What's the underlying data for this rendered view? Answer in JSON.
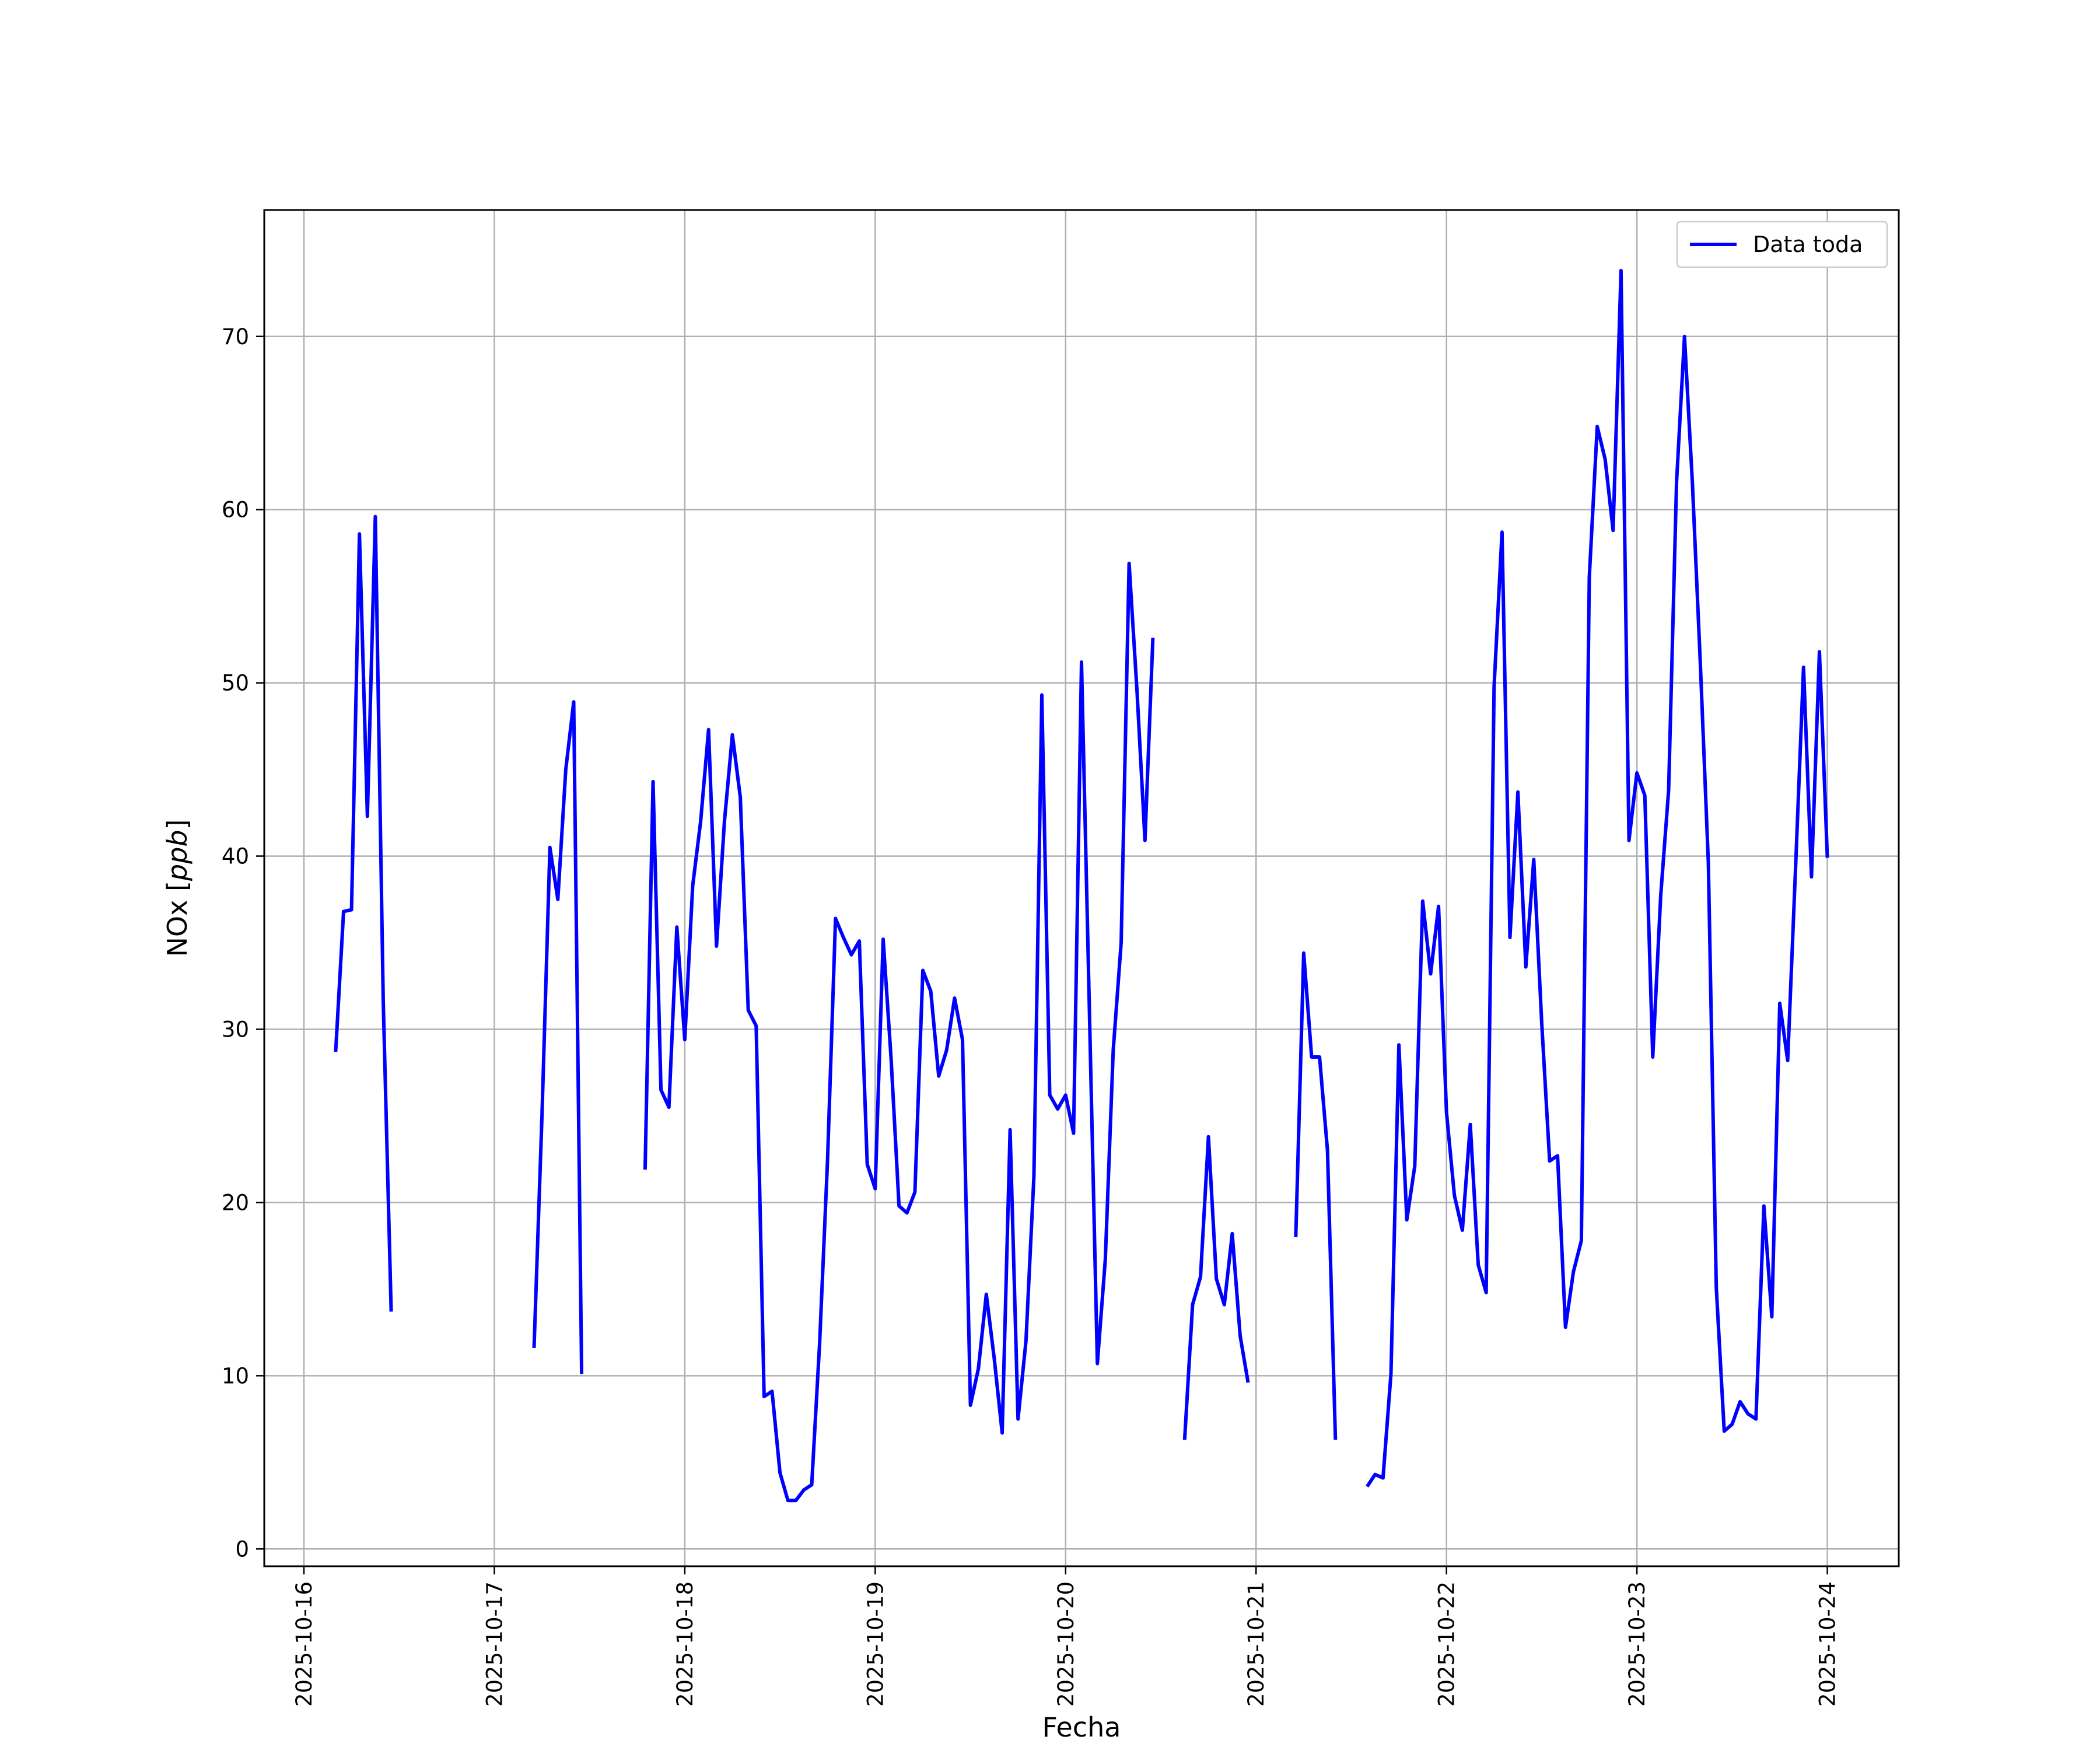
{
  "chart_data": {
    "type": "line",
    "title": "",
    "xlabel": "Fecha",
    "ylabel_prefix": "NOx [",
    "ylabel_unit": "ppb",
    "ylabel_suffix": "]",
    "x_ticks": [
      "2025-10-16",
      "2025-10-17",
      "2025-10-18",
      "2025-10-19",
      "2025-10-20",
      "2025-10-21",
      "2025-10-22",
      "2025-10-23",
      "2025-10-24"
    ],
    "y_ticks": [
      "0",
      "10",
      "20",
      "30",
      "40",
      "50",
      "60",
      "70"
    ],
    "xlim": [
      "2025-10-15T19:00",
      "2025-10-24T09:00"
    ],
    "ylim": [
      -1,
      77.3
    ],
    "grid": true,
    "legend": "top-right",
    "series": [
      {
        "name": "Data toda",
        "color": "#0000ff",
        "segments": [
          [
            [
              "2025-10-16T04:00",
              28.7
            ],
            [
              "2025-10-16T05:00",
              36.8
            ],
            [
              "2025-10-16T06:00",
              36.9
            ],
            [
              "2025-10-16T07:00",
              58.6
            ],
            [
              "2025-10-16T08:00",
              42.3
            ],
            [
              "2025-10-16T09:00",
              59.6
            ],
            [
              "2025-10-16T10:00",
              31.6
            ],
            [
              "2025-10-16T11:00",
              13.7
            ]
          ],
          [
            [
              "2025-10-17T05:00",
              11.6
            ],
            [
              "2025-10-17T06:00",
              25.0
            ],
            [
              "2025-10-17T07:00",
              40.5
            ],
            [
              "2025-10-17T08:00",
              37.5
            ],
            [
              "2025-10-17T09:00",
              45.0
            ],
            [
              "2025-10-17T10:00",
              48.9
            ],
            [
              "2025-10-17T11:00",
              10.1
            ]
          ],
          [
            [
              "2025-10-17T19:00",
              21.9
            ],
            [
              "2025-10-17T20:00",
              44.3
            ],
            [
              "2025-10-17T21:00",
              26.5
            ],
            [
              "2025-10-17T22:00",
              25.5
            ],
            [
              "2025-10-17T23:00",
              35.9
            ],
            [
              "2025-10-18T00:00",
              29.4
            ],
            [
              "2025-10-18T01:00",
              38.3
            ],
            [
              "2025-10-18T02:00",
              42.0
            ],
            [
              "2025-10-18T03:00",
              47.3
            ],
            [
              "2025-10-18T04:00",
              34.8
            ],
            [
              "2025-10-18T05:00",
              42.0
            ],
            [
              "2025-10-18T06:00",
              47.0
            ],
            [
              "2025-10-18T07:00",
              43.4
            ],
            [
              "2025-10-18T08:00",
              31.1
            ],
            [
              "2025-10-18T09:00",
              30.2
            ],
            [
              "2025-10-18T10:00",
              8.8
            ],
            [
              "2025-10-18T11:00",
              9.1
            ],
            [
              "2025-10-18T12:00",
              4.4
            ],
            [
              "2025-10-18T13:00",
              2.8
            ],
            [
              "2025-10-18T14:00",
              2.8
            ],
            [
              "2025-10-18T15:00",
              3.4
            ],
            [
              "2025-10-18T16:00",
              3.7
            ],
            [
              "2025-10-18T17:00",
              11.9
            ],
            [
              "2025-10-18T18:00",
              22.5
            ],
            [
              "2025-10-18T19:00",
              36.4
            ],
            [
              "2025-10-18T20:00",
              35.3
            ],
            [
              "2025-10-18T21:00",
              34.3
            ],
            [
              "2025-10-18T22:00",
              35.1
            ],
            [
              "2025-10-18T23:00",
              22.2
            ],
            [
              "2025-10-19T00:00",
              20.8
            ],
            [
              "2025-10-19T01:00",
              35.2
            ],
            [
              "2025-10-19T02:00",
              28.3
            ],
            [
              "2025-10-19T03:00",
              19.8
            ],
            [
              "2025-10-19T04:00",
              19.4
            ],
            [
              "2025-10-19T05:00",
              20.6
            ],
            [
              "2025-10-19T06:00",
              33.4
            ],
            [
              "2025-10-19T07:00",
              32.2
            ],
            [
              "2025-10-19T08:00",
              27.3
            ],
            [
              "2025-10-19T09:00",
              28.8
            ],
            [
              "2025-10-19T10:00",
              31.8
            ],
            [
              "2025-10-19T11:00",
              29.4
            ],
            [
              "2025-10-19T12:00",
              8.3
            ],
            [
              "2025-10-19T13:00",
              10.4
            ],
            [
              "2025-10-19T14:00",
              14.7
            ],
            [
              "2025-10-19T15:00",
              11.0
            ],
            [
              "2025-10-19T16:00",
              6.7
            ],
            [
              "2025-10-19T17:00",
              24.2
            ],
            [
              "2025-10-19T18:00",
              7.5
            ],
            [
              "2025-10-19T19:00",
              12.0
            ],
            [
              "2025-10-19T20:00",
              21.5
            ],
            [
              "2025-10-19T21:00",
              49.3
            ],
            [
              "2025-10-19T22:00",
              26.2
            ],
            [
              "2025-10-19T23:00",
              25.4
            ],
            [
              "2025-10-20T00:00",
              26.2
            ],
            [
              "2025-10-20T01:00",
              24.0
            ],
            [
              "2025-10-20T02:00",
              51.2
            ],
            [
              "2025-10-20T03:00",
              31.0
            ],
            [
              "2025-10-20T04:00",
              10.7
            ],
            [
              "2025-10-20T05:00",
              16.7
            ],
            [
              "2025-10-20T06:00",
              28.8
            ],
            [
              "2025-10-20T07:00",
              35.0
            ],
            [
              "2025-10-20T08:00",
              56.9
            ],
            [
              "2025-10-20T09:00",
              49.5
            ],
            [
              "2025-10-20T10:00",
              40.9
            ],
            [
              "2025-10-20T11:00",
              52.6
            ]
          ],
          [
            [
              "2025-10-20T15:00",
              6.3
            ],
            [
              "2025-10-20T16:00",
              14.1
            ],
            [
              "2025-10-20T17:00",
              15.7
            ],
            [
              "2025-10-20T18:00",
              23.8
            ],
            [
              "2025-10-20T19:00",
              15.6
            ],
            [
              "2025-10-20T20:00",
              14.1
            ],
            [
              "2025-10-20T21:00",
              18.2
            ],
            [
              "2025-10-20T22:00",
              12.3
            ],
            [
              "2025-10-20T23:00",
              9.6
            ]
          ],
          [
            [
              "2025-10-21T05:00",
              18.0
            ],
            [
              "2025-10-21T06:00",
              34.4
            ],
            [
              "2025-10-21T07:00",
              28.4
            ],
            [
              "2025-10-21T08:00",
              28.4
            ],
            [
              "2025-10-21T09:00",
              23.0
            ],
            [
              "2025-10-21T10:00",
              6.3
            ]
          ],
          [
            [
              "2025-10-21T14:00",
              3.6
            ],
            [
              "2025-10-21T15:00",
              4.3
            ],
            [
              "2025-10-21T16:00",
              4.1
            ],
            [
              "2025-10-21T17:00",
              10.1
            ],
            [
              "2025-10-21T18:00",
              29.1
            ],
            [
              "2025-10-21T19:00",
              19.0
            ],
            [
              "2025-10-21T20:00",
              22.1
            ],
            [
              "2025-10-21T21:00",
              37.4
            ],
            [
              "2025-10-21T22:00",
              33.2
            ],
            [
              "2025-10-21T23:00",
              37.1
            ],
            [
              "2025-10-22T00:00",
              25.2
            ],
            [
              "2025-10-22T01:00",
              20.4
            ],
            [
              "2025-10-22T02:00",
              18.4
            ],
            [
              "2025-10-22T03:00",
              24.5
            ],
            [
              "2025-10-22T04:00",
              16.4
            ],
            [
              "2025-10-22T05:00",
              14.8
            ],
            [
              "2025-10-22T06:00",
              49.8
            ],
            [
              "2025-10-22T07:00",
              58.7
            ],
            [
              "2025-10-22T08:00",
              35.3
            ],
            [
              "2025-10-22T09:00",
              43.7
            ],
            [
              "2025-10-22T10:00",
              33.6
            ],
            [
              "2025-10-22T11:00",
              39.8
            ],
            [
              "2025-10-22T12:00",
              30.4
            ],
            [
              "2025-10-22T13:00",
              22.4
            ],
            [
              "2025-10-22T14:00",
              22.7
            ],
            [
              "2025-10-22T15:00",
              12.8
            ],
            [
              "2025-10-22T16:00",
              16.0
            ],
            [
              "2025-10-22T17:00",
              17.8
            ],
            [
              "2025-10-22T18:00",
              56.1
            ],
            [
              "2025-10-22T19:00",
              64.8
            ],
            [
              "2025-10-22T20:00",
              62.9
            ],
            [
              "2025-10-22T21:00",
              58.8
            ],
            [
              "2025-10-22T22:00",
              73.8
            ],
            [
              "2025-10-22T23:00",
              40.9
            ],
            [
              "2025-10-23T00:00",
              44.8
            ],
            [
              "2025-10-23T01:00",
              43.5
            ],
            [
              "2025-10-23T02:00",
              28.4
            ],
            [
              "2025-10-23T03:00",
              37.7
            ],
            [
              "2025-10-23T04:00",
              43.8
            ],
            [
              "2025-10-23T05:00",
              61.6
            ],
            [
              "2025-10-23T06:00",
              70.0
            ],
            [
              "2025-10-23T07:00",
              61.5
            ],
            [
              "2025-10-23T08:00",
              51.0
            ],
            [
              "2025-10-23T09:00",
              39.6
            ],
            [
              "2025-10-23T10:00",
              15.1
            ],
            [
              "2025-10-23T11:00",
              6.8
            ],
            [
              "2025-10-23T12:00",
              7.2
            ],
            [
              "2025-10-23T13:00",
              8.5
            ],
            [
              "2025-10-23T14:00",
              7.8
            ],
            [
              "2025-10-23T15:00",
              7.5
            ],
            [
              "2025-10-23T16:00",
              19.8
            ],
            [
              "2025-10-23T17:00",
              13.4
            ],
            [
              "2025-10-23T18:00",
              31.5
            ],
            [
              "2025-10-23T19:00",
              28.2
            ],
            [
              "2025-10-23T20:00",
              39.4
            ],
            [
              "2025-10-23T21:00",
              50.9
            ],
            [
              "2025-10-23T22:00",
              38.8
            ],
            [
              "2025-10-23T23:00",
              51.8
            ],
            [
              "2025-10-24T00:00",
              39.9
            ]
          ]
        ]
      }
    ]
  }
}
